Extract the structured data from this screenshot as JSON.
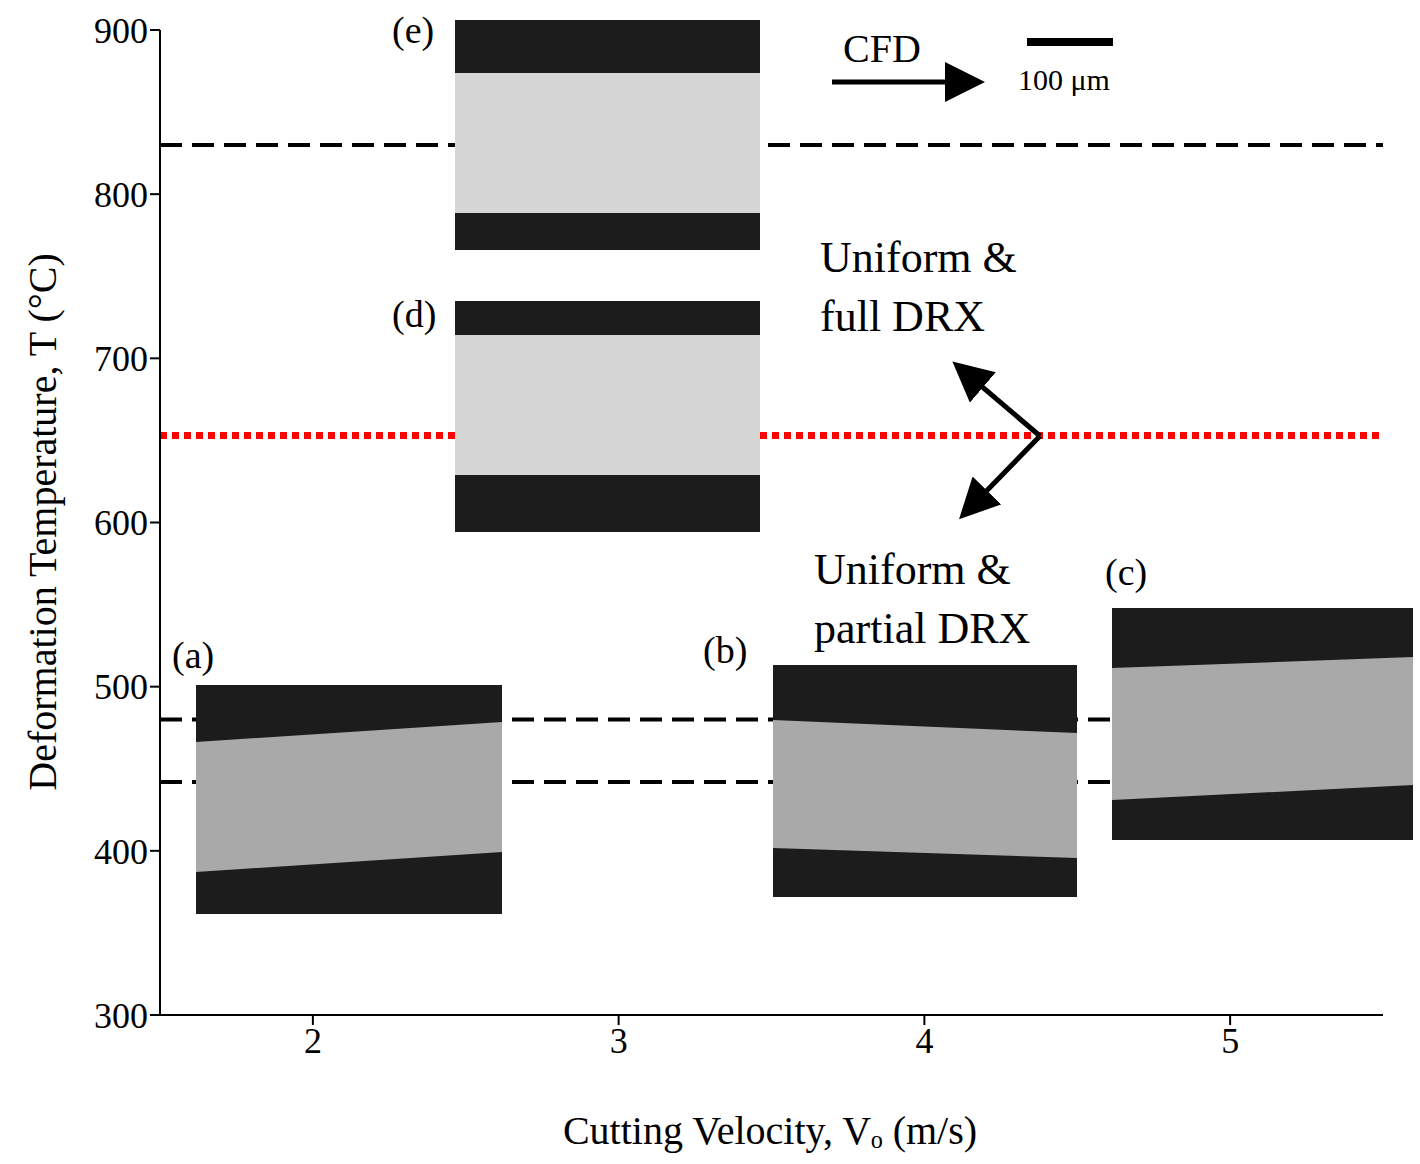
{
  "chart_data": {
    "type": "line",
    "xlabel": "Cutting Velocity, Vₒ (m/s)",
    "ylabel": "Deformation Temperature, T (°C)",
    "xlim": [
      1.5,
      5.5
    ],
    "xticks": [
      2,
      3,
      4,
      5
    ],
    "ylim": [
      300,
      900
    ],
    "yticks": [
      300,
      400,
      500,
      600,
      700,
      800,
      900
    ],
    "grid": false,
    "reference_lines": [
      {
        "y": 830,
        "color": "#000000",
        "line_style": "dashed"
      },
      {
        "y": 480,
        "color": "#000000",
        "line_style": "dashed"
      },
      {
        "y": 442,
        "color": "#000000",
        "line_style": "dashed"
      },
      {
        "y": 653,
        "color": "#ff0000",
        "line_style": "dotted"
      }
    ],
    "annotations": [
      "CFD",
      "100 μm",
      "Uniform &\nfull DRX",
      "Uniform &\npartial DRX"
    ],
    "panel_labels": [
      "(a)",
      "(b)",
      "(c)",
      "(d)",
      "(e)"
    ]
  }
}
